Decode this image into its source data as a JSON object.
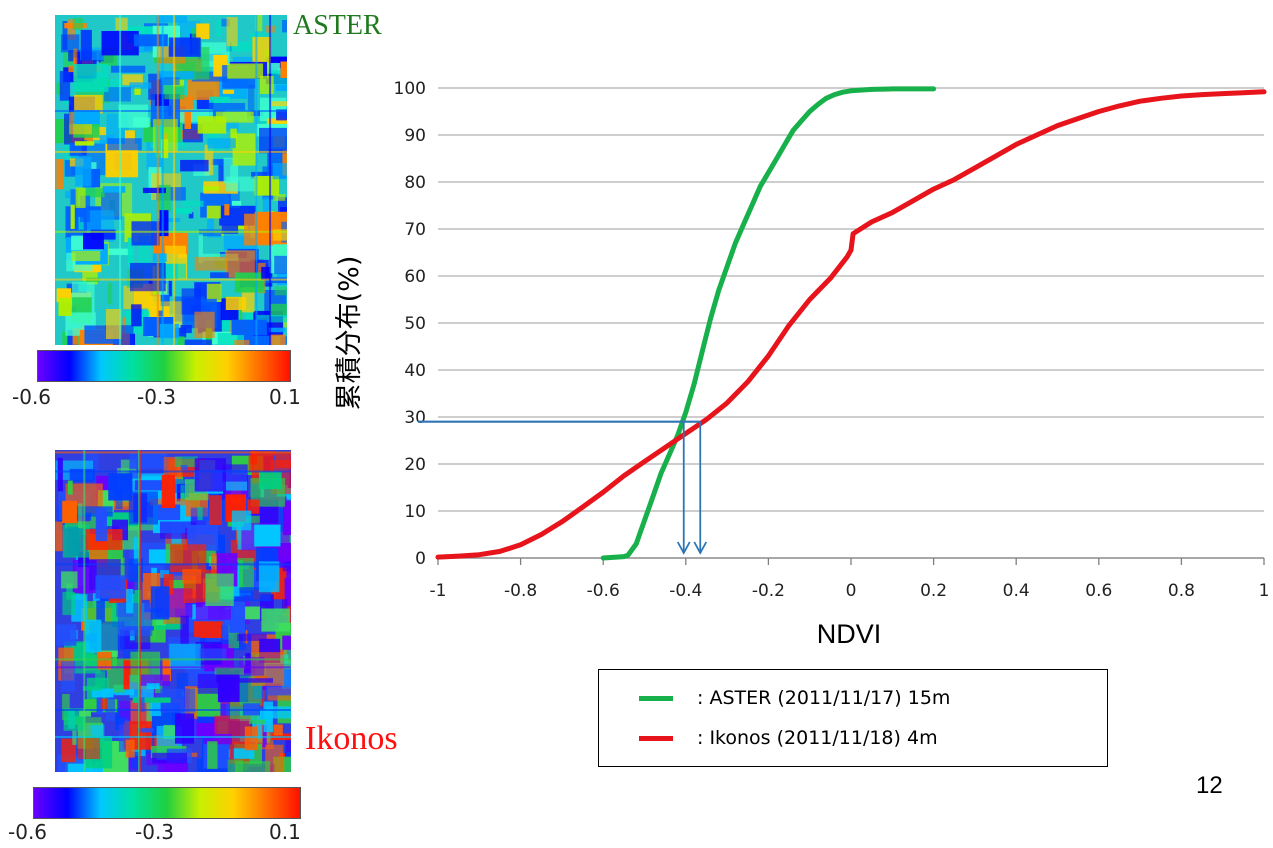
{
  "maps": {
    "aster": {
      "label": "ASTER",
      "label_color": "#1f7a1f"
    },
    "ikonos": {
      "label": "Ikonos",
      "label_color": "#ff1010"
    }
  },
  "colorbar": {
    "min_label": "-0.6",
    "mid_label": "-0.3",
    "max_label": "0.1",
    "colors": [
      "#6a00ff",
      "#0000ff",
      "#00c8ff",
      "#00e0a0",
      "#20d040",
      "#c8f000",
      "#ffd000",
      "#ff7000",
      "#ff1000"
    ]
  },
  "chart_data": {
    "type": "line",
    "xlabel": "NDVI",
    "ylabel": "累積分布(%)",
    "xlim": [
      -1,
      1
    ],
    "ylim": [
      0,
      100
    ],
    "x_ticks": [
      "-1",
      "-0.8",
      "-0.6",
      "-0.4",
      "-0.2",
      "0",
      "0.2",
      "0.4",
      "0.6",
      "0.8",
      "1"
    ],
    "y_ticks": [
      "0",
      "10",
      "20",
      "30",
      "40",
      "50",
      "60",
      "70",
      "80",
      "90",
      "100"
    ],
    "grid": "horizontal",
    "series": [
      {
        "name": ": ASTER (2011/11/17) 15m",
        "color": "#18b04a",
        "points": [
          [
            -0.6,
            0
          ],
          [
            -0.55,
            0.3
          ],
          [
            -0.54,
            0.6
          ],
          [
            -0.52,
            3
          ],
          [
            -0.5,
            8
          ],
          [
            -0.48,
            13
          ],
          [
            -0.46,
            18
          ],
          [
            -0.44,
            22
          ],
          [
            -0.42,
            26
          ],
          [
            -0.4,
            31
          ],
          [
            -0.38,
            37
          ],
          [
            -0.36,
            44
          ],
          [
            -0.34,
            51
          ],
          [
            -0.32,
            57
          ],
          [
            -0.3,
            62
          ],
          [
            -0.28,
            67
          ],
          [
            -0.26,
            71
          ],
          [
            -0.24,
            75
          ],
          [
            -0.22,
            79
          ],
          [
            -0.2,
            82
          ],
          [
            -0.18,
            85
          ],
          [
            -0.16,
            88
          ],
          [
            -0.14,
            91
          ],
          [
            -0.12,
            93
          ],
          [
            -0.1,
            95
          ],
          [
            -0.08,
            96.5
          ],
          [
            -0.06,
            97.8
          ],
          [
            -0.04,
            98.6
          ],
          [
            -0.02,
            99.1
          ],
          [
            0.0,
            99.4
          ],
          [
            0.05,
            99.7
          ],
          [
            0.1,
            99.8
          ],
          [
            0.2,
            99.8
          ]
        ]
      },
      {
        "name": ": Ikonos (2011/11/18) 4m",
        "color": "#e8141c",
        "points": [
          [
            -1.0,
            0.2
          ],
          [
            -0.95,
            0.4
          ],
          [
            -0.9,
            0.7
          ],
          [
            -0.85,
            1.4
          ],
          [
            -0.8,
            2.8
          ],
          [
            -0.75,
            5
          ],
          [
            -0.7,
            7.7
          ],
          [
            -0.65,
            10.8
          ],
          [
            -0.6,
            14
          ],
          [
            -0.55,
            17.5
          ],
          [
            -0.5,
            20.5
          ],
          [
            -0.45,
            23.5
          ],
          [
            -0.4,
            26.5
          ],
          [
            -0.35,
            29.5
          ],
          [
            -0.3,
            33
          ],
          [
            -0.25,
            37.5
          ],
          [
            -0.2,
            43
          ],
          [
            -0.15,
            49.5
          ],
          [
            -0.1,
            55
          ],
          [
            -0.05,
            59.5
          ],
          [
            -0.01,
            64
          ],
          [
            0.0,
            65.5
          ],
          [
            0.005,
            69
          ],
          [
            0.05,
            71.5
          ],
          [
            0.1,
            73.5
          ],
          [
            0.15,
            76
          ],
          [
            0.2,
            78.5
          ],
          [
            0.25,
            80.5
          ],
          [
            0.3,
            83
          ],
          [
            0.35,
            85.5
          ],
          [
            0.4,
            88
          ],
          [
            0.45,
            90
          ],
          [
            0.5,
            92
          ],
          [
            0.55,
            93.5
          ],
          [
            0.6,
            95
          ],
          [
            0.65,
            96.2
          ],
          [
            0.7,
            97.2
          ],
          [
            0.75,
            97.8
          ],
          [
            0.8,
            98.3
          ],
          [
            0.85,
            98.6
          ],
          [
            0.9,
            98.8
          ],
          [
            0.95,
            99
          ],
          [
            1.0,
            99.2
          ]
        ]
      }
    ],
    "annotation": {
      "level": 29,
      "aster_x": -0.405,
      "ikonos_x": -0.365,
      "color": "#2e75b6"
    }
  },
  "page": {
    "number": "12"
  }
}
